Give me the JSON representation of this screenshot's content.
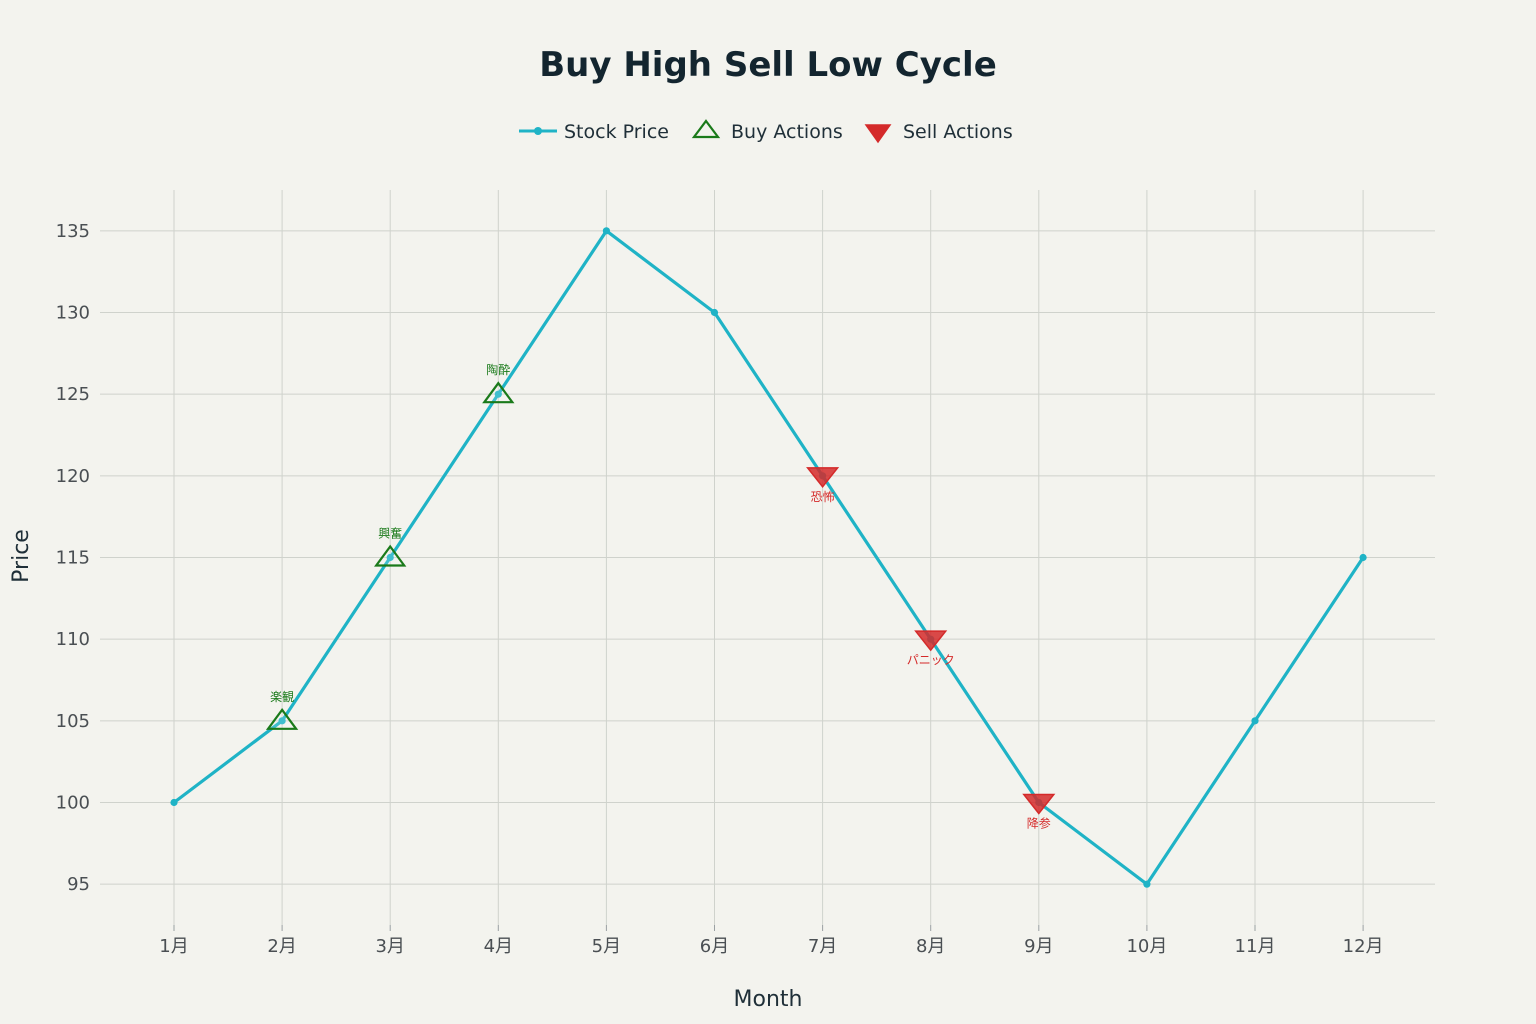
{
  "chart_data": {
    "type": "line",
    "title": "Buy High Sell Low Cycle",
    "xlabel": "Month",
    "ylabel": "Price",
    "categories": [
      "1月",
      "2月",
      "3月",
      "4月",
      "5月",
      "6月",
      "7月",
      "8月",
      "9月",
      "10月",
      "11月",
      "12月"
    ],
    "ylim": [
      92.5,
      137.5
    ],
    "yticks": [
      95,
      100,
      105,
      110,
      115,
      120,
      125,
      130,
      135
    ],
    "grid": true,
    "legend_position": "top-center",
    "series": [
      {
        "name": "Stock Price",
        "color": "#1fb3c6",
        "marker": "circle",
        "values": [
          100,
          105,
          115,
          125,
          135,
          130,
          120,
          110,
          100,
          95,
          105,
          115
        ]
      }
    ],
    "buy_actions": {
      "name": "Buy Actions",
      "color": "#1a7a1a",
      "marker": "triangle-up",
      "points": [
        {
          "x": "2月",
          "y": 105,
          "label": "楽観"
        },
        {
          "x": "3月",
          "y": 115,
          "label": "興奮"
        },
        {
          "x": "4月",
          "y": 125,
          "label": "陶酔"
        }
      ]
    },
    "sell_actions": {
      "name": "Sell Actions",
      "color": "#d42a2a",
      "marker": "triangle-down",
      "points": [
        {
          "x": "7月",
          "y": 120,
          "label": "恐怖"
        },
        {
          "x": "8月",
          "y": 110,
          "label": "パニック"
        },
        {
          "x": "9月",
          "y": 100,
          "label": "降参"
        }
      ]
    }
  }
}
